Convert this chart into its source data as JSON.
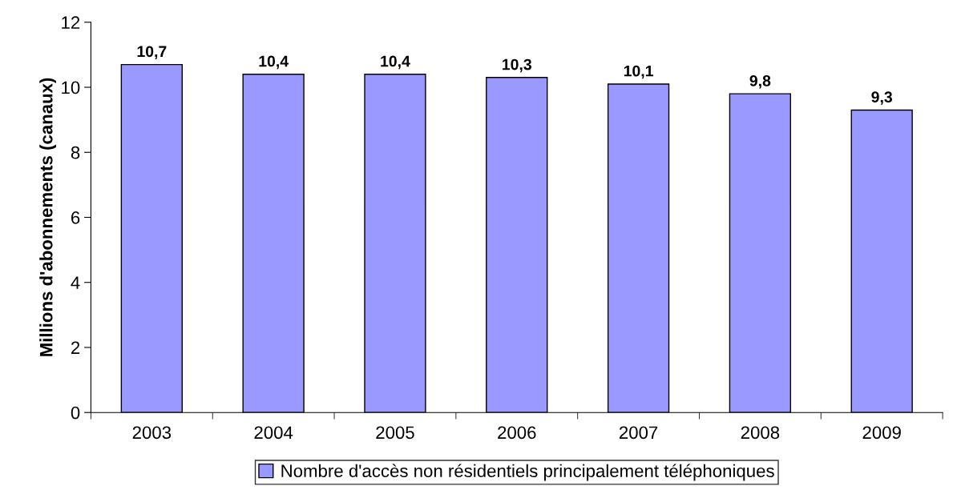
{
  "chart_data": {
    "type": "bar",
    "ylabel": "Millions d'abonnements (canaux)",
    "categories": [
      "2003",
      "2004",
      "2005",
      "2006",
      "2007",
      "2008",
      "2009"
    ],
    "series": [
      {
        "name": "Nombre d'accès non résidentiels principalement téléphoniques",
        "color": "#9999ff",
        "values": [
          10.7,
          10.4,
          10.4,
          10.3,
          10.1,
          9.8,
          9.3
        ],
        "value_labels": [
          "10,7",
          "10,4",
          "10,4",
          "10,3",
          "10,1",
          "9,8",
          "9,3"
        ]
      }
    ],
    "ylim": [
      0,
      12
    ],
    "yticks": [
      0,
      2,
      4,
      6,
      8,
      10,
      12
    ],
    "grid": false,
    "legend": "bottom"
  }
}
